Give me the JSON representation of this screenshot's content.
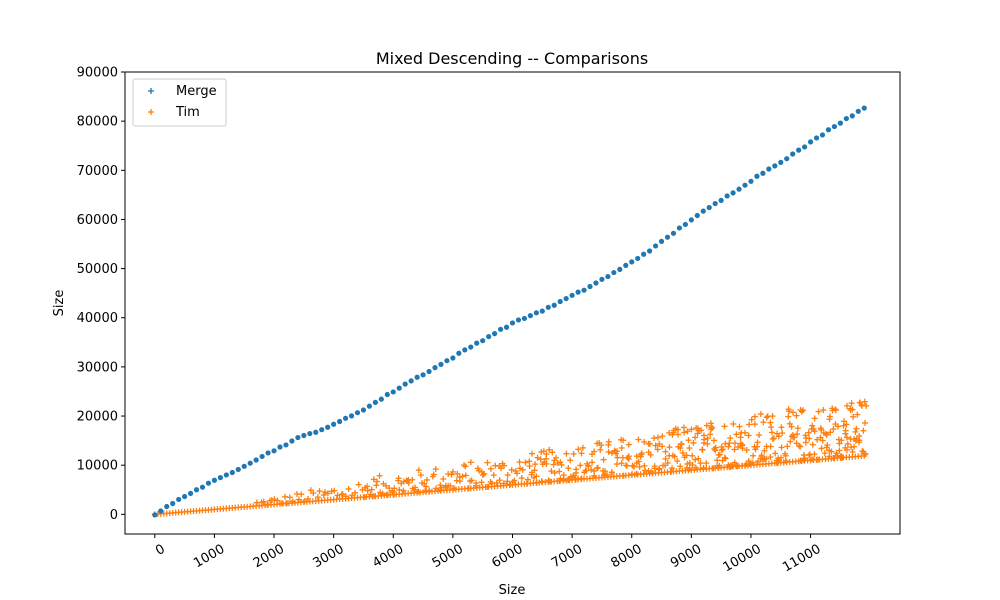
{
  "chart_data": {
    "type": "scatter",
    "title": "Mixed Descending -- Comparisons",
    "xlabel": "Size",
    "ylabel": "Size",
    "xlim": [
      -500,
      12500
    ],
    "ylim": [
      -4000,
      90000
    ],
    "x_ticks": [
      0,
      1000,
      2000,
      3000,
      4000,
      5000,
      6000,
      7000,
      8000,
      9000,
      10000,
      11000
    ],
    "x_tick_labels": [
      "0",
      "1000",
      "2000",
      "3000",
      "4000",
      "5000",
      "6000",
      "7000",
      "8000",
      "9000",
      "10000",
      "11000"
    ],
    "y_ticks": [
      0,
      10000,
      20000,
      30000,
      40000,
      50000,
      60000,
      70000,
      80000,
      90000
    ],
    "y_tick_labels": [
      "0",
      "10000",
      "20000",
      "30000",
      "40000",
      "50000",
      "60000",
      "70000",
      "80000",
      "90000"
    ],
    "x_tick_rotation": -30,
    "grid": false,
    "legend_position": "top-left",
    "series": [
      {
        "name": "Merge",
        "color": "#1f77b4",
        "marker": "circle",
        "legend_marker": "+",
        "x": [
          0,
          600,
          1200,
          1800,
          2400,
          3000,
          3600,
          4200,
          4800,
          5400,
          6000,
          6600,
          7200,
          7800,
          8400,
          9000,
          9600,
          10200,
          10800,
          11400,
          11900
        ],
        "y": [
          0,
          4400,
          8000,
          11800,
          15500,
          18200,
          22000,
          26500,
          30500,
          34800,
          38900,
          42000,
          45700,
          49800,
          54500,
          60000,
          64700,
          69500,
          74000,
          79000,
          82700
        ]
      },
      {
        "name": "Tim",
        "color": "#ff7f0e",
        "marker": "+",
        "x": [
          0,
          2000,
          4000,
          6000,
          8000,
          10000,
          11900
        ],
        "y_min": [
          0,
          2000,
          4000,
          6000,
          8000,
          10000,
          11900
        ],
        "y_max": [
          0,
          3500,
          8500,
          12000,
          16000,
          20500,
          23500
        ]
      }
    ]
  }
}
